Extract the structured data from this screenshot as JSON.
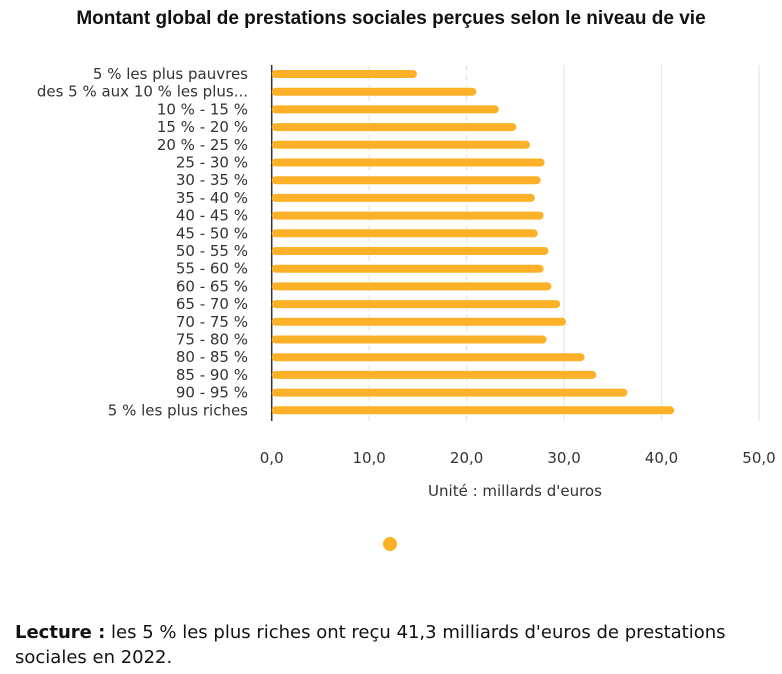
{
  "chart_data": {
    "type": "bar",
    "orientation": "horizontal",
    "title": "Montant global de prestations sociales perçues selon le niveau de vie",
    "xlabel": "Unité : millards d'euros",
    "categories": [
      "5 % les plus pauvres",
      "des 5 % aux 10 % les plus...",
      "10 % - 15 %",
      "15 % - 20 %",
      "20 % - 25 %",
      "25 - 30 %",
      "30 - 35 %",
      "35 - 40 %",
      "40 - 45 %",
      "45 - 50 %",
      "50 - 55 %",
      "55 - 60 %",
      "60 - 65 %",
      "65 - 70 %",
      "70 - 75 %",
      "75 - 80 %",
      "80 - 85 %",
      "85 - 90 %",
      "90 - 95 %",
      "5 % les plus riches"
    ],
    "values": [
      14.9,
      21.0,
      23.3,
      25.1,
      26.5,
      28.0,
      27.6,
      27.0,
      27.9,
      27.3,
      28.4,
      27.9,
      28.7,
      29.6,
      30.2,
      28.2,
      32.1,
      33.3,
      36.5,
      41.3
    ],
    "xlim": [
      0,
      50
    ],
    "xticks": [
      "0,0",
      "10,0",
      "20,0",
      "30,0",
      "40,0",
      "50,0"
    ],
    "grid": true,
    "color": "#FDB128",
    "legend": "bottom-center"
  },
  "footer": {
    "label": "Lecture :",
    "text": " les 5 % les plus riches ont reçu 41,3 milliards d'euros de prestations sociales en 2022."
  }
}
